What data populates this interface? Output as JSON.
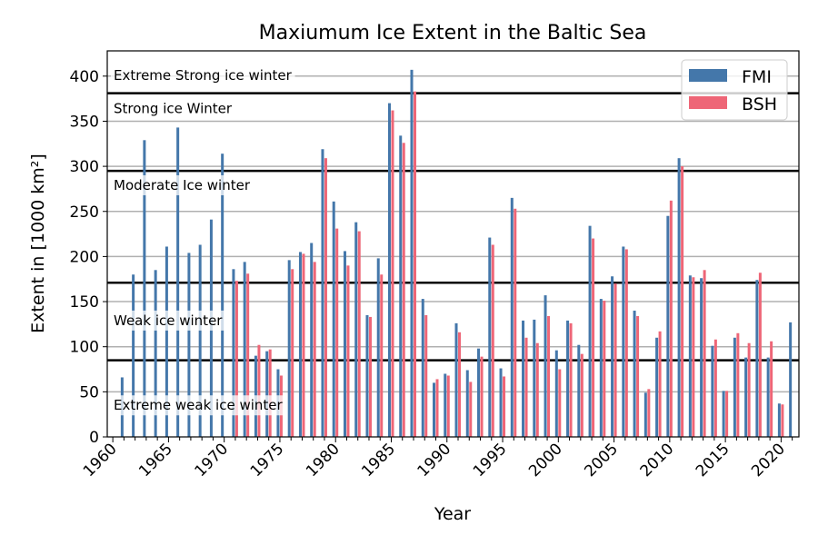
{
  "chart_data": {
    "type": "bar",
    "title": "Maxiumum Ice Extent in the Baltic Sea",
    "xlabel": "Year",
    "ylabel": "Extent in [1000 km²]",
    "xlim": [
      1959.5,
      2021.6
    ],
    "ylim": [
      0,
      428
    ],
    "grid": "y",
    "legend_placement": "top-right",
    "xticks": [
      1960,
      1965,
      1970,
      1975,
      1980,
      1985,
      1990,
      1995,
      2000,
      2005,
      2010,
      2015,
      2020
    ],
    "yticks": [
      0,
      50,
      100,
      150,
      200,
      250,
      300,
      350,
      400
    ],
    "colors": {
      "FMI": "#4477aa",
      "BSH": "#ee6677"
    },
    "thresholds": [
      85,
      171,
      295,
      381
    ],
    "band_labels": [
      {
        "text": "Extreme Strong ice winter",
        "y": 401
      },
      {
        "text": "Strong ice Winter",
        "y": 364
      },
      {
        "text": "Moderate Ice winter",
        "y": 279
      },
      {
        "text": "Weak ice winter",
        "y": 129
      },
      {
        "text": "Extreme weak ice winter",
        "y": 35
      }
    ],
    "x": [
      1961,
      1962,
      1963,
      1964,
      1965,
      1966,
      1967,
      1968,
      1969,
      1970,
      1971,
      1972,
      1973,
      1974,
      1975,
      1976,
      1977,
      1978,
      1979,
      1980,
      1981,
      1982,
      1983,
      1984,
      1985,
      1986,
      1987,
      1988,
      1989,
      1990,
      1991,
      1992,
      1993,
      1994,
      1995,
      1996,
      1997,
      1998,
      1999,
      2000,
      2001,
      2002,
      2003,
      2004,
      2005,
      2006,
      2007,
      2008,
      2009,
      2010,
      2011,
      2012,
      2013,
      2014,
      2015,
      2016,
      2017,
      2018,
      2019,
      2020,
      2021
    ],
    "series": [
      {
        "name": "FMI",
        "values": [
          66,
          180,
          329,
          185,
          211,
          343,
          204,
          213,
          241,
          314,
          186,
          194,
          90,
          95,
          75,
          196,
          205,
          215,
          319,
          261,
          206,
          238,
          135,
          198,
          370,
          334,
          407,
          153,
          60,
          70,
          126,
          74,
          98,
          221,
          76,
          265,
          129,
          130,
          157,
          96,
          129,
          102,
          234,
          153,
          178,
          211,
          140,
          49,
          110,
          245,
          309,
          179,
          176,
          101,
          51,
          110,
          88,
          174,
          88,
          37,
          127
        ]
      },
      {
        "name": "BSH",
        "values": [
          null,
          null,
          null,
          null,
          null,
          null,
          null,
          null,
          null,
          null,
          173,
          181,
          102,
          97,
          68,
          186,
          203,
          194,
          309,
          231,
          190,
          228,
          133,
          180,
          362,
          326,
          383,
          135,
          64,
          68,
          116,
          61,
          89,
          213,
          67,
          253,
          110,
          104,
          134,
          75,
          126,
          92,
          220,
          151,
          170,
          208,
          134,
          53,
          117,
          262,
          300,
          177,
          185,
          108,
          51,
          115,
          104,
          182,
          106,
          36,
          null
        ]
      }
    ]
  }
}
